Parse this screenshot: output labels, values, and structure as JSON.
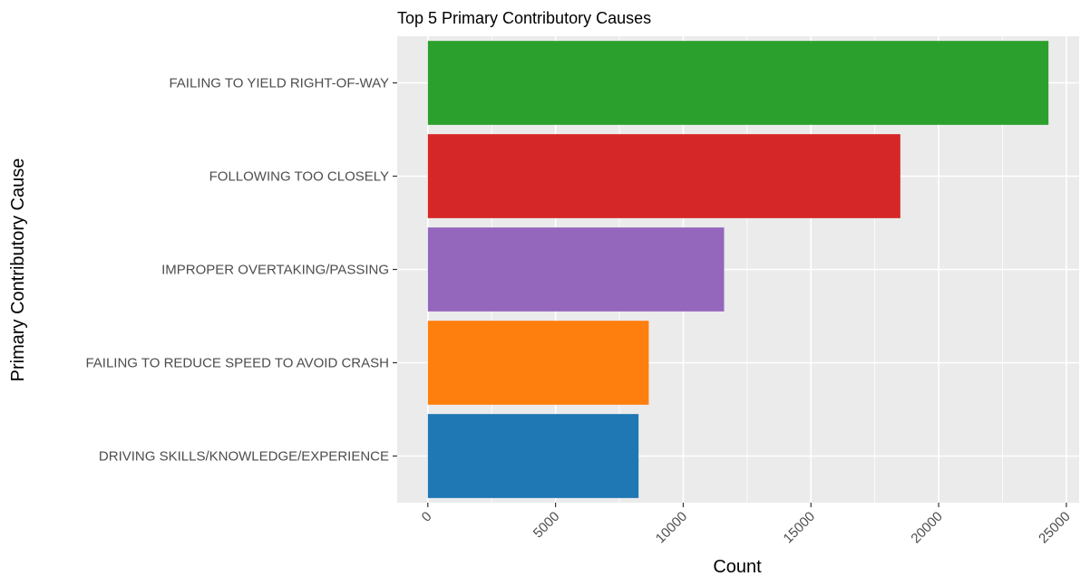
{
  "chart_data": {
    "type": "bar",
    "orientation": "horizontal",
    "title": "Top 5 Primary Contributory Causes",
    "xlabel": "Count",
    "ylabel": "Primary Contributory Cause",
    "categories": [
      "FAILING TO YIELD RIGHT-OF-WAY",
      "FOLLOWING TOO CLOSELY",
      "IMPROPER OVERTAKING/PASSING",
      "FAILING TO REDUCE SPEED TO AVOID CRASH",
      "DRIVING SKILLS/KNOWLEDGE/EXPERIENCE"
    ],
    "values": [
      24300,
      18500,
      11600,
      8650,
      8250
    ],
    "colors": [
      "#2ca02c",
      "#d62728",
      "#9467bd",
      "#ff7f0e",
      "#1f77b4"
    ],
    "xticks": [
      0,
      5000,
      10000,
      15000,
      20000,
      25000
    ],
    "xlim": [
      -1200,
      25500
    ],
    "grid": true,
    "legend": "none",
    "panel_background": "#ebebeb",
    "grid_color": "#ffffff"
  }
}
